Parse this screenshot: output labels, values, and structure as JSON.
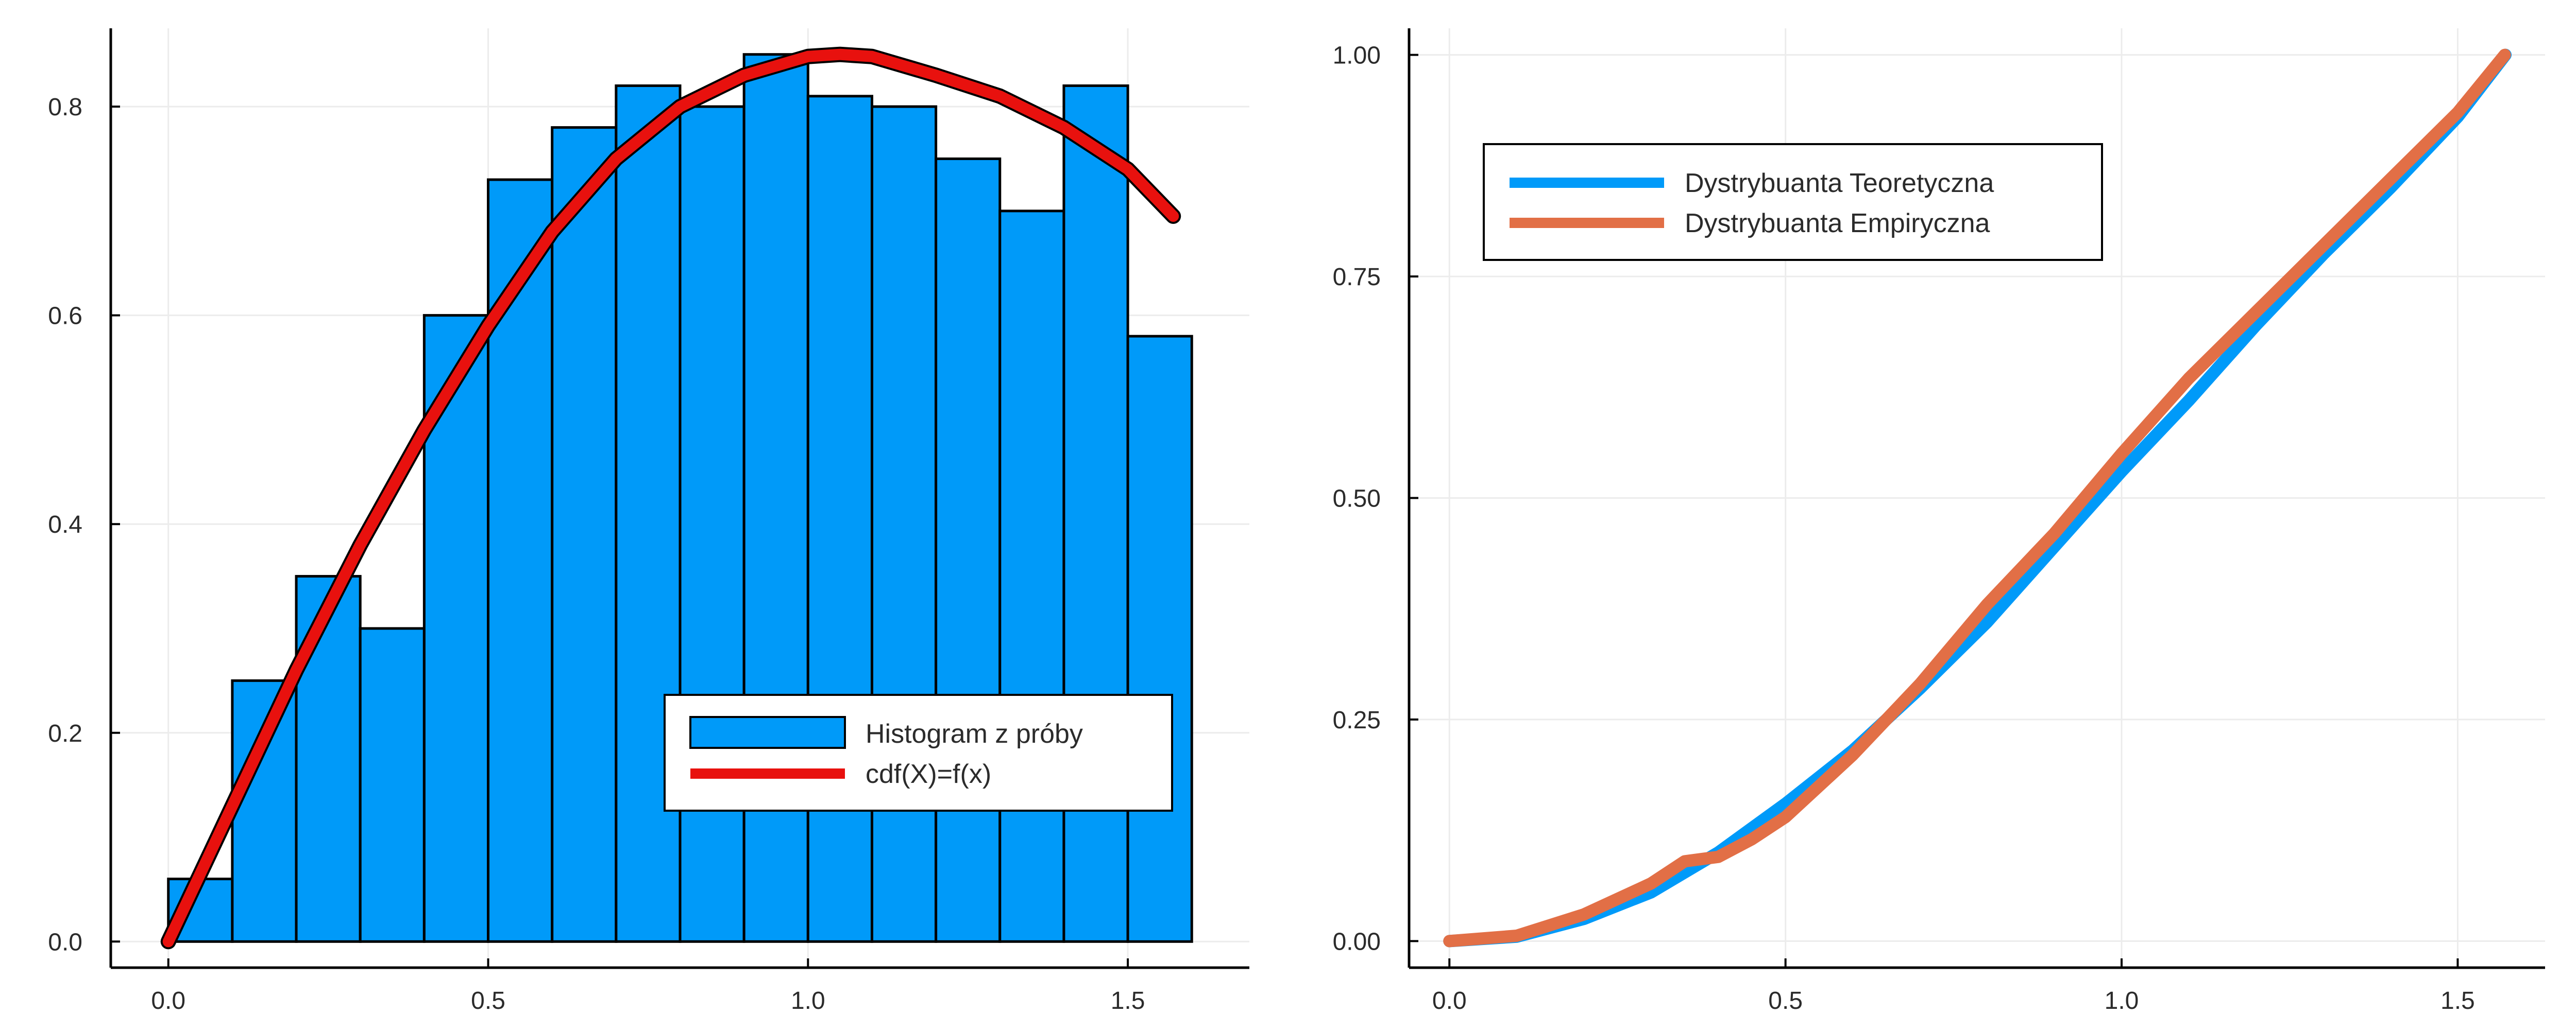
{
  "chart_data": [
    {
      "type": "bar",
      "title": "",
      "xlabel": "",
      "ylabel": "",
      "xlim": [
        -0.09,
        1.69
      ],
      "ylim": [
        -0.025,
        0.875
      ],
      "xticks": [
        0.0,
        0.5,
        1.0,
        1.5
      ],
      "xtick_labels": [
        "0.0",
        "0.5",
        "1.0",
        "1.5"
      ],
      "yticks": [
        0.0,
        0.2,
        0.4,
        0.6,
        0.8
      ],
      "ytick_labels": [
        "0.0",
        "0.2",
        "0.4",
        "0.6",
        "0.8"
      ],
      "grid": true,
      "legend_position": "bottom-right",
      "colors": {
        "histogram": "#009af9",
        "density": "#e8110e",
        "bar_edge": "#000000",
        "grid": "#ececec",
        "axis": "#000000"
      },
      "series": [
        {
          "name": "Histogram z próby",
          "kind": "histogram",
          "bin_edges": [
            0.0,
            0.1,
            0.2,
            0.3,
            0.4,
            0.5,
            0.6,
            0.7,
            0.8,
            0.9,
            1.0,
            1.1,
            1.2,
            1.3,
            1.4,
            1.5,
            1.6
          ],
          "values": [
            0.06,
            0.25,
            0.35,
            0.3,
            0.6,
            0.73,
            0.78,
            0.82,
            0.8,
            0.85,
            0.81,
            0.8,
            0.75,
            0.7,
            0.82,
            0.58
          ]
        },
        {
          "name": "cdf(X)=f(x)",
          "kind": "line",
          "x": [
            0.0,
            0.1,
            0.2,
            0.3,
            0.4,
            0.5,
            0.6,
            0.7,
            0.8,
            0.9,
            1.0,
            1.05,
            1.1,
            1.2,
            1.3,
            1.4,
            1.5,
            1.571
          ],
          "y": [
            0.0,
            0.13,
            0.26,
            0.38,
            0.49,
            0.59,
            0.68,
            0.75,
            0.8,
            0.83,
            0.848,
            0.85,
            0.848,
            0.83,
            0.81,
            0.78,
            0.74,
            0.695
          ]
        }
      ]
    },
    {
      "type": "line",
      "title": "",
      "xlabel": "",
      "ylabel": "",
      "xlim": [
        -0.06,
        1.63
      ],
      "ylim": [
        -0.03,
        1.03
      ],
      "xticks": [
        0.0,
        0.5,
        1.0,
        1.5
      ],
      "xtick_labels": [
        "0.0",
        "0.5",
        "1.0",
        "1.5"
      ],
      "yticks": [
        0.0,
        0.25,
        0.5,
        0.75,
        1.0
      ],
      "ytick_labels": [
        "0.00",
        "0.25",
        "0.50",
        "0.75",
        "1.00"
      ],
      "grid": true,
      "legend_position": "top-left",
      "colors": {
        "grid": "#ececec",
        "axis": "#000000"
      },
      "series": [
        {
          "name": "Dystrybuanta Teoretyczna",
          "color": "#009af9",
          "x": [
            0.0,
            0.1,
            0.2,
            0.3,
            0.4,
            0.5,
            0.6,
            0.7,
            0.8,
            0.9,
            1.0,
            1.1,
            1.2,
            1.3,
            1.4,
            1.5,
            1.571
          ],
          "y": [
            0.0,
            0.005,
            0.025,
            0.055,
            0.1,
            0.155,
            0.215,
            0.285,
            0.36,
            0.445,
            0.53,
            0.61,
            0.695,
            0.775,
            0.85,
            0.93,
            1.0
          ]
        },
        {
          "name": "Dystrybuanta Empiryczna",
          "color": "#e26f46",
          "x": [
            0.0,
            0.1,
            0.2,
            0.3,
            0.35,
            0.4,
            0.45,
            0.5,
            0.6,
            0.7,
            0.8,
            0.9,
            1.0,
            1.1,
            1.2,
            1.3,
            1.4,
            1.5,
            1.57
          ],
          "y": [
            0.0,
            0.006,
            0.03,
            0.065,
            0.09,
            0.095,
            0.115,
            0.14,
            0.21,
            0.29,
            0.38,
            0.46,
            0.55,
            0.635,
            0.71,
            0.785,
            0.86,
            0.935,
            1.0
          ]
        }
      ]
    }
  ]
}
